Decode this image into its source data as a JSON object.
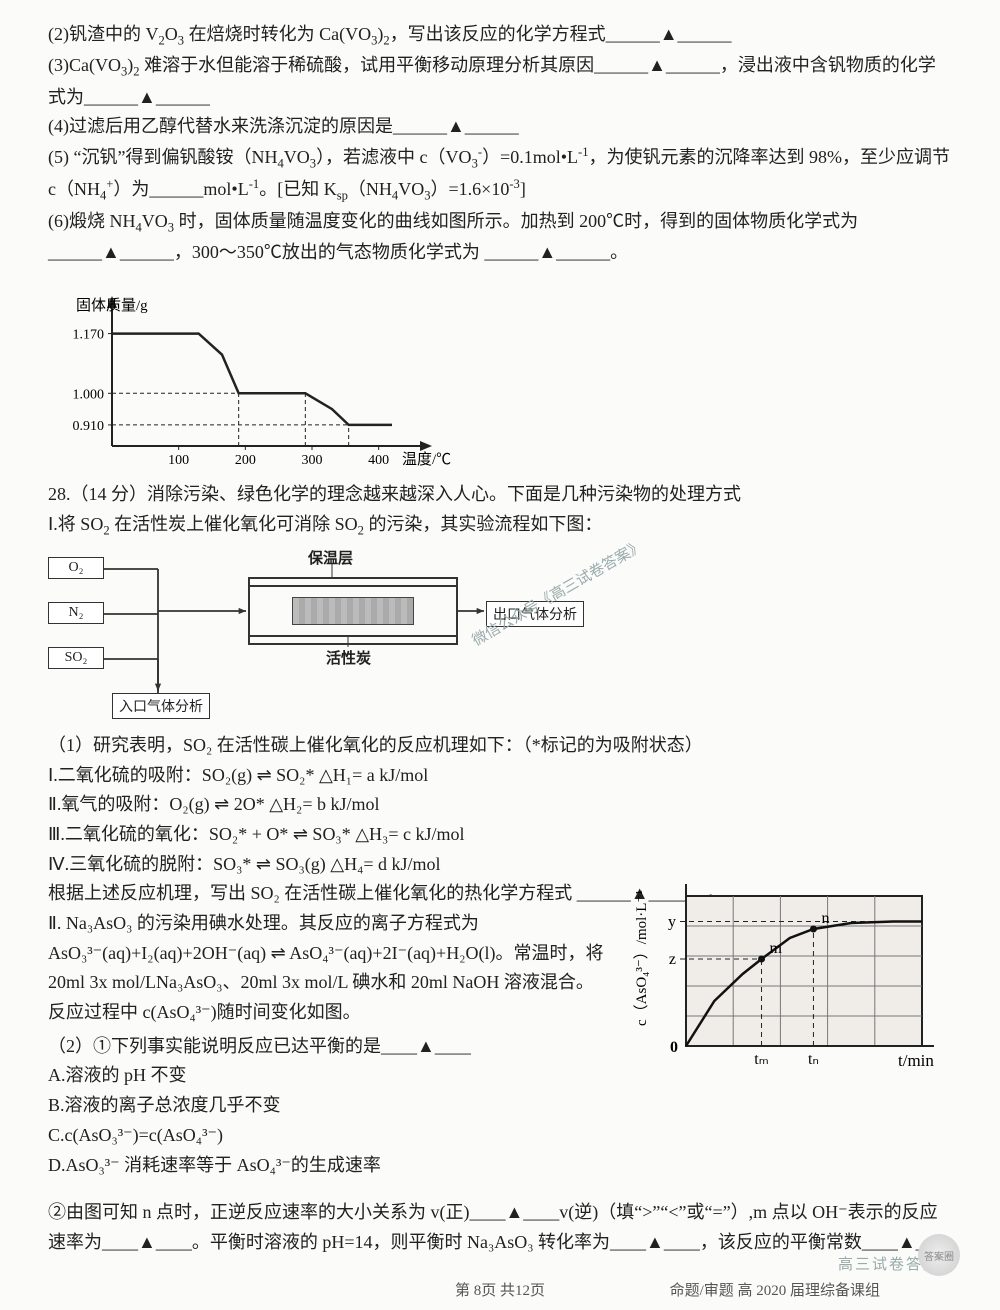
{
  "q2": {
    "pre": "(2)钒渣中的 V",
    "s1": "O",
    "mid": " 在焙烧时转化为 Ca(VO",
    "s2": "，写出该反应的化学方程式",
    "end": "______▲______"
  },
  "q3": {
    "a": "(3)Ca(VO",
    "b": " 难溶于水但能溶于稀硫酸，试用平衡移动原理分析其原因______▲______，浸出液中含钒物质的化学式为______▲______"
  },
  "q4": "(4)过滤后用乙醇代替水来洗涤沉淀的原因是______▲______",
  "q5": {
    "a": "(5) “沉钒”得到偏钒酸铵（NH",
    "b": "VO",
    "c": "），若滤液中 c（VO",
    "d": "）=0.1mol•L",
    "e": "，为使钒元素的沉降率达到 98%，至少应调节 c（NH",
    "f": "）为______mol•L",
    "g": "。[已知 K",
    "h": "（NH",
    "i": "VO",
    "j": "）=1.6×10",
    "k": "]"
  },
  "q6": {
    "a": "(6)煅烧 NH",
    "b": "VO",
    "c": " 时，固体质量随温度变化的曲线如图所示。加热到 200℃时，得到的固体物质化学式为______▲______，300～350℃放出的气态物质化学式为 ______▲______。"
  },
  "chart1": {
    "ylabel": "固体质量/g",
    "xlabel": "温度/℃",
    "yticks": [
      "1.170",
      "1.000",
      "0.910"
    ],
    "xticks": [
      "100",
      "200",
      "300",
      "400"
    ],
    "yvals": [
      1.17,
      1.0,
      0.91
    ],
    "xvals": [
      100,
      200,
      300,
      400
    ],
    "axis_color": "#222",
    "line_color": "#222",
    "dash_color": "#222",
    "curve": [
      [
        0,
        1.17
      ],
      [
        130,
        1.17
      ],
      [
        165,
        1.11
      ],
      [
        190,
        1.0
      ],
      [
        290,
        1.0
      ],
      [
        330,
        0.955
      ],
      [
        355,
        0.91
      ],
      [
        420,
        0.91
      ]
    ]
  },
  "q28_head": "28.（14 分）消除污染、绿色化学的理念越来越深入人心。下面是几种污染物的处理方式",
  "q28_I": "Ⅰ.将 SO",
  "q28_I2": " 在活性炭上催化氧化可消除 SO",
  "q28_I3": " 的污染，其实验流程如下图：",
  "flow": {
    "gases": [
      "O₂",
      "N₂",
      "SO₂"
    ],
    "inlet": "入口气体分析",
    "outlet": "出口气体分析",
    "top": "保温层",
    "bot": "活性炭",
    "box_border": "#333",
    "brick_color": "#b5b5b5"
  },
  "q28_1_head": "（1）研究表明，SO₂ 在活性碳上催化氧化的反应机理如下：（*标记的为吸附状态）",
  "mech": {
    "i": "Ⅰ.二氧化硫的吸附：SO₂(g) ⇌ SO₂*   △H₁= a kJ/mol",
    "ii": "Ⅱ.氧气的吸附：O₂(g)  ⇌  2O*  △H₂= b kJ/mol",
    "iii": "Ⅲ.二氧化硫的氧化：SO₂* + O* ⇌ SO₃*  △H₃= c kJ/mol",
    "iv": "Ⅳ.三氧化硫的脱附：SO₃*  ⇌ SO₃(g)  △H₄= d kJ/mol"
  },
  "q28_1_ask": "根据上述反应机理，写出 SO₂ 在活性碳上催化氧化的热化学方程式 ______▲______ 。",
  "q28_II": {
    "a": "Ⅱ. Na₃AsO₃ 的污染用碘水处理。其反应的离子方程式为",
    "b": "AsO₃³⁻(aq)+I₂(aq)+2OH⁻(aq)  ⇌ AsO₄³⁻(aq)+2I⁻(aq)+H₂O(l)。常温时，将 20ml 3x mol/LNa₃AsO₃、20ml 3x mol/L 碘水和 20ml NaOH 溶液混合。反应过程中 c(AsO₄³⁻)随时间变化如图。"
  },
  "q2_items": {
    "head": "（2）①下列事实能说明反应已达平衡的是____▲____",
    "A": "A.溶液的 pH 不变",
    "B": "B.溶液的离子总浓度几乎不变",
    "C": "C.c(AsO₃³⁻)=c(AsO₄³⁻)",
    "D": "D.AsO₃³⁻ 消耗速率等于 AsO₄³⁻的生成速率"
  },
  "chart2": {
    "ylabel": "c（AsO₄³⁻）/mol·L⁻¹",
    "xlabel": "t/min",
    "yticks": [
      "y",
      "z"
    ],
    "xticks": [
      "tₘ",
      "tₙ"
    ],
    "points": [
      {
        "lbl": "m",
        "x": 0.32,
        "y": 0.58
      },
      {
        "lbl": "n",
        "x": 0.54,
        "y": 0.78
      }
    ],
    "plateau_y": 0.83,
    "curve": [
      [
        0,
        0
      ],
      [
        0.12,
        0.3
      ],
      [
        0.24,
        0.48
      ],
      [
        0.32,
        0.58
      ],
      [
        0.44,
        0.72
      ],
      [
        0.54,
        0.78
      ],
      [
        0.7,
        0.82
      ],
      [
        0.88,
        0.83
      ],
      [
        1.0,
        0.83
      ]
    ],
    "grid_color": "#777",
    "axis_color": "#222",
    "line_color": "#111",
    "bg": "#f0ede9"
  },
  "q28_2_2": "②由图可知 n 点时，正逆反应速率的大小关系为 v(正)____▲____v(逆)（填“>”“<”或“=”）,m 点以 OH⁻表示的反应速率为____▲____。平衡时溶液的 pH=14，则平衡时 Na₃AsO₃ 转化率为____▲____，该反应的平衡常数____▲____",
  "footer": {
    "page": "第 8页  共12页",
    "right": "命题/审题        高 2020 届理综备课组"
  },
  "watermarks": {
    "diag": "微信公众号《高三试卷答案》",
    "br": "高三试卷答案"
  }
}
